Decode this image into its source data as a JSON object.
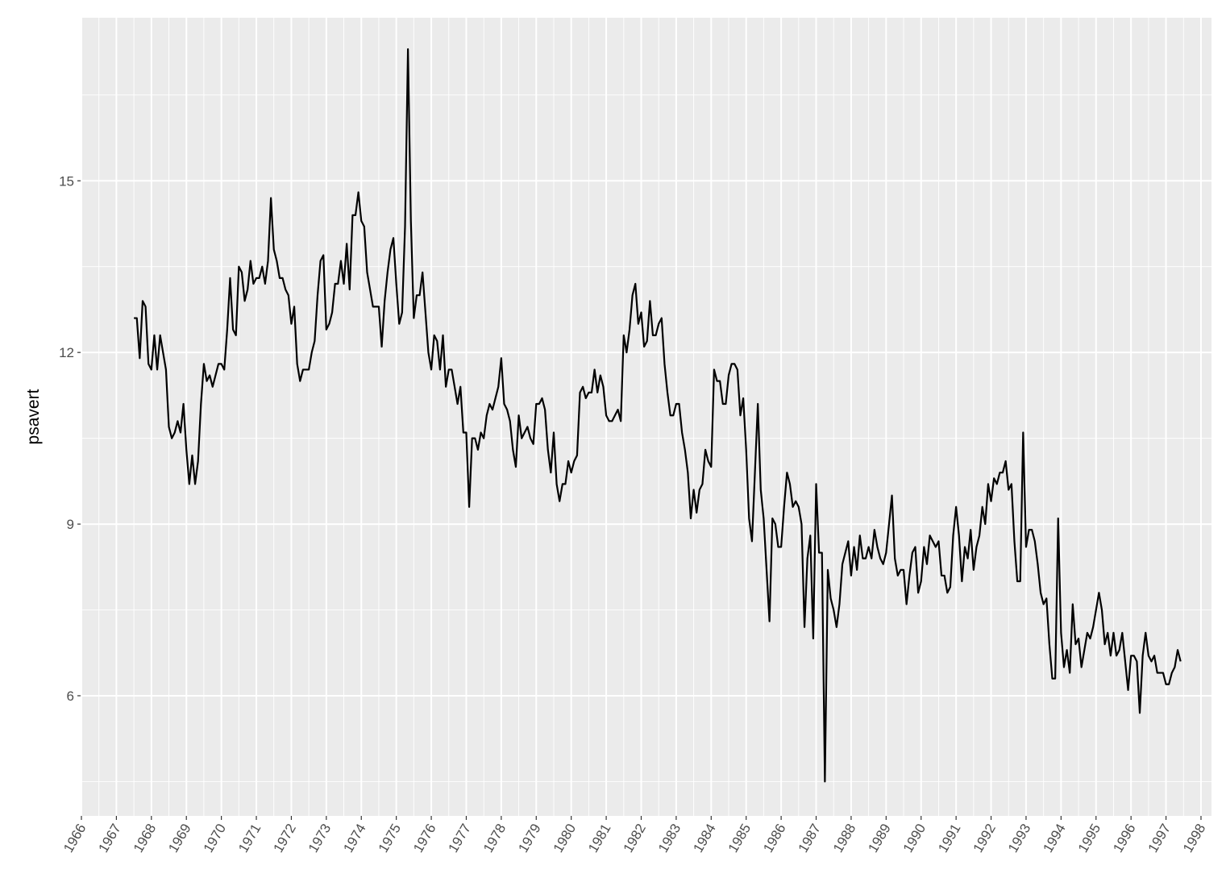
{
  "chart_data": {
    "type": "line",
    "y_label": "psavert",
    "x": [
      "1967-07",
      "1967-08",
      "1967-09",
      "1967-10",
      "1967-11",
      "1967-12",
      "1968-01",
      "1968-02",
      "1968-03",
      "1968-04",
      "1968-05",
      "1968-06",
      "1968-07",
      "1968-08",
      "1968-09",
      "1968-10",
      "1968-11",
      "1968-12",
      "1969-01",
      "1969-02",
      "1969-03",
      "1969-04",
      "1969-05",
      "1969-06",
      "1969-07",
      "1969-08",
      "1969-09",
      "1969-10",
      "1969-11",
      "1969-12",
      "1970-01",
      "1970-02",
      "1970-03",
      "1970-04",
      "1970-05",
      "1970-06",
      "1970-07",
      "1970-08",
      "1970-09",
      "1970-10",
      "1970-11",
      "1970-12",
      "1971-01",
      "1971-02",
      "1971-03",
      "1971-04",
      "1971-05",
      "1971-06",
      "1971-07",
      "1971-08",
      "1971-09",
      "1971-10",
      "1971-11",
      "1971-12",
      "1972-01",
      "1972-02",
      "1972-03",
      "1972-04",
      "1972-05",
      "1972-06",
      "1972-07",
      "1972-08",
      "1972-09",
      "1972-10",
      "1972-11",
      "1972-12",
      "1973-01",
      "1973-02",
      "1973-03",
      "1973-04",
      "1973-05",
      "1973-06",
      "1973-07",
      "1973-08",
      "1973-09",
      "1973-10",
      "1973-11",
      "1973-12",
      "1974-01",
      "1974-02",
      "1974-03",
      "1974-04",
      "1974-05",
      "1974-06",
      "1974-07",
      "1974-08",
      "1974-09",
      "1974-10",
      "1974-11",
      "1974-12",
      "1975-01",
      "1975-02",
      "1975-03",
      "1975-04",
      "1975-05",
      "1975-06",
      "1975-07",
      "1975-08",
      "1975-09",
      "1975-10",
      "1975-11",
      "1975-12",
      "1976-01",
      "1976-02",
      "1976-03",
      "1976-04",
      "1976-05",
      "1976-06",
      "1976-07",
      "1976-08",
      "1976-09",
      "1976-10",
      "1976-11",
      "1976-12",
      "1977-01",
      "1977-02",
      "1977-03",
      "1977-04",
      "1977-05",
      "1977-06",
      "1977-07",
      "1977-08",
      "1977-09",
      "1977-10",
      "1977-11",
      "1977-12",
      "1978-01",
      "1978-02",
      "1978-03",
      "1978-04",
      "1978-05",
      "1978-06",
      "1978-07",
      "1978-08",
      "1978-09",
      "1978-10",
      "1978-11",
      "1978-12",
      "1979-01",
      "1979-02",
      "1979-03",
      "1979-04",
      "1979-05",
      "1979-06",
      "1979-07",
      "1979-08",
      "1979-09",
      "1979-10",
      "1979-11",
      "1979-12",
      "1980-01",
      "1980-02",
      "1980-03",
      "1980-04",
      "1980-05",
      "1980-06",
      "1980-07",
      "1980-08",
      "1980-09",
      "1980-10",
      "1980-11",
      "1980-12",
      "1981-01",
      "1981-02",
      "1981-03",
      "1981-04",
      "1981-05",
      "1981-06",
      "1981-07",
      "1981-08",
      "1981-09",
      "1981-10",
      "1981-11",
      "1981-12",
      "1982-01",
      "1982-02",
      "1982-03",
      "1982-04",
      "1982-05",
      "1982-06",
      "1982-07",
      "1982-08",
      "1982-09",
      "1982-10",
      "1982-11",
      "1982-12",
      "1983-01",
      "1983-02",
      "1983-03",
      "1983-04",
      "1983-05",
      "1983-06",
      "1983-07",
      "1983-08",
      "1983-09",
      "1983-10",
      "1983-11",
      "1983-12",
      "1984-01",
      "1984-02",
      "1984-03",
      "1984-04",
      "1984-05",
      "1984-06",
      "1984-07",
      "1984-08",
      "1984-09",
      "1984-10",
      "1984-11",
      "1984-12",
      "1985-01",
      "1985-02",
      "1985-03",
      "1985-04",
      "1985-05",
      "1985-06",
      "1985-07",
      "1985-08",
      "1985-09",
      "1985-10",
      "1985-11",
      "1985-12",
      "1986-01",
      "1986-02",
      "1986-03",
      "1986-04",
      "1986-05",
      "1986-06",
      "1986-07",
      "1986-08",
      "1986-09",
      "1986-10",
      "1986-11",
      "1986-12",
      "1987-01",
      "1987-02",
      "1987-03",
      "1987-04",
      "1987-05",
      "1987-06",
      "1987-07",
      "1987-08",
      "1987-09",
      "1987-10",
      "1987-11",
      "1987-12",
      "1988-01",
      "1988-02",
      "1988-03",
      "1988-04",
      "1988-05",
      "1988-06",
      "1988-07",
      "1988-08",
      "1988-09",
      "1988-10",
      "1988-11",
      "1988-12",
      "1989-01",
      "1989-02",
      "1989-03",
      "1989-04",
      "1989-05",
      "1989-06",
      "1989-07",
      "1989-08",
      "1989-09",
      "1989-10",
      "1989-11",
      "1989-12",
      "1990-01",
      "1990-02",
      "1990-03",
      "1990-04",
      "1990-05",
      "1990-06",
      "1990-07",
      "1990-08",
      "1990-09",
      "1990-10",
      "1990-11",
      "1990-12",
      "1991-01",
      "1991-02",
      "1991-03",
      "1991-04",
      "1991-05",
      "1991-06",
      "1991-07",
      "1991-08",
      "1991-09",
      "1991-10",
      "1991-11",
      "1991-12",
      "1992-01",
      "1992-02",
      "1992-03",
      "1992-04",
      "1992-05",
      "1992-06",
      "1992-07",
      "1992-08",
      "1992-09",
      "1992-10",
      "1992-11",
      "1992-12",
      "1993-01",
      "1993-02",
      "1993-03",
      "1993-04",
      "1993-05",
      "1993-06",
      "1993-07",
      "1993-08",
      "1993-09",
      "1993-10",
      "1993-11",
      "1993-12",
      "1994-01",
      "1994-02",
      "1994-03",
      "1994-04",
      "1994-05",
      "1994-06",
      "1994-07",
      "1994-08",
      "1994-09",
      "1994-10",
      "1994-11",
      "1994-12",
      "1995-01",
      "1995-02",
      "1995-03",
      "1995-04",
      "1995-05",
      "1995-06",
      "1995-07",
      "1995-08",
      "1995-09",
      "1995-10",
      "1995-11",
      "1995-12",
      "1996-01",
      "1996-02",
      "1996-03",
      "1996-04",
      "1996-05",
      "1996-06",
      "1996-07",
      "1996-08",
      "1996-09",
      "1996-10",
      "1996-11",
      "1996-12",
      "1997-01",
      "1997-02",
      "1997-03",
      "1997-04",
      "1997-05",
      "1997-06"
    ],
    "series": [
      {
        "name": "psavert",
        "color": "#000000",
        "values": [
          12.6,
          12.6,
          11.9,
          12.9,
          12.8,
          11.8,
          11.7,
          12.3,
          11.7,
          12.3,
          12.0,
          11.7,
          10.7,
          10.5,
          10.6,
          10.8,
          10.6,
          11.1,
          10.3,
          9.7,
          10.2,
          9.7,
          10.1,
          11.1,
          11.8,
          11.5,
          11.6,
          11.4,
          11.6,
          11.8,
          11.8,
          11.7,
          12.4,
          13.3,
          12.4,
          12.3,
          13.5,
          13.4,
          12.9,
          13.1,
          13.6,
          13.2,
          13.3,
          13.3,
          13.5,
          13.2,
          13.6,
          14.7,
          13.8,
          13.6,
          13.3,
          13.3,
          13.1,
          13.0,
          12.5,
          12.8,
          11.8,
          11.5,
          11.7,
          11.7,
          11.7,
          12.0,
          12.2,
          13.0,
          13.6,
          13.7,
          12.4,
          12.5,
          12.7,
          13.2,
          13.2,
          13.6,
          13.2,
          13.9,
          13.1,
          14.4,
          14.4,
          14.8,
          14.3,
          14.2,
          13.4,
          13.1,
          12.8,
          12.8,
          12.8,
          12.1,
          12.9,
          13.4,
          13.8,
          14.0,
          13.2,
          12.5,
          12.7,
          14.2,
          17.3,
          14.3,
          12.6,
          13.0,
          13.0,
          13.4,
          12.7,
          12.0,
          11.7,
          12.3,
          12.2,
          11.7,
          12.3,
          11.4,
          11.7,
          11.7,
          11.4,
          11.1,
          11.4,
          10.6,
          10.6,
          9.3,
          10.5,
          10.5,
          10.3,
          10.6,
          10.5,
          10.9,
          11.1,
          11.0,
          11.2,
          11.4,
          11.9,
          11.1,
          11.0,
          10.8,
          10.3,
          10.0,
          10.9,
          10.5,
          10.6,
          10.7,
          10.5,
          10.4,
          11.1,
          11.1,
          11.2,
          11.0,
          10.3,
          9.9,
          10.6,
          9.7,
          9.4,
          9.7,
          9.7,
          10.1,
          9.9,
          10.1,
          10.2,
          11.3,
          11.4,
          11.2,
          11.3,
          11.3,
          11.7,
          11.3,
          11.6,
          11.4,
          10.9,
          10.8,
          10.8,
          10.9,
          11.0,
          10.8,
          12.3,
          12.0,
          12.4,
          13.0,
          13.2,
          12.5,
          12.7,
          12.1,
          12.2,
          12.9,
          12.3,
          12.3,
          12.5,
          12.6,
          11.8,
          11.3,
          10.9,
          10.9,
          11.1,
          11.1,
          10.6,
          10.3,
          9.9,
          9.1,
          9.6,
          9.2,
          9.6,
          9.7,
          10.3,
          10.1,
          10.0,
          11.7,
          11.5,
          11.5,
          11.1,
          11.1,
          11.6,
          11.8,
          11.8,
          11.7,
          10.9,
          11.2,
          10.3,
          9.1,
          8.7,
          9.9,
          11.1,
          9.6,
          9.1,
          8.2,
          7.3,
          9.1,
          9.0,
          8.6,
          8.6,
          9.3,
          9.9,
          9.7,
          9.3,
          9.4,
          9.3,
          9.0,
          7.2,
          8.4,
          8.8,
          7.0,
          9.7,
          8.5,
          8.5,
          4.5,
          8.2,
          7.7,
          7.5,
          7.2,
          7.6,
          8.3,
          8.5,
          8.7,
          8.1,
          8.6,
          8.2,
          8.8,
          8.4,
          8.4,
          8.6,
          8.4,
          8.9,
          8.6,
          8.4,
          8.3,
          8.5,
          9.0,
          9.5,
          8.4,
          8.1,
          8.2,
          8.2,
          7.6,
          8.1,
          8.5,
          8.6,
          7.8,
          8.0,
          8.6,
          8.3,
          8.8,
          8.7,
          8.6,
          8.7,
          8.1,
          8.1,
          7.8,
          7.9,
          8.8,
          9.3,
          8.8,
          8.0,
          8.6,
          8.4,
          8.9,
          8.2,
          8.6,
          8.8,
          9.3,
          9.0,
          9.7,
          9.4,
          9.8,
          9.7,
          9.9,
          9.9,
          10.1,
          9.6,
          9.7,
          8.7,
          8.0,
          8.0,
          10.6,
          8.6,
          8.9,
          8.9,
          8.7,
          8.3,
          7.8,
          7.6,
          7.7,
          6.9,
          6.3,
          6.3,
          9.1,
          7.1,
          6.5,
          6.8,
          6.4,
          7.6,
          6.9,
          7.0,
          6.5,
          6.8,
          7.1,
          7.0,
          7.2,
          7.5,
          7.8,
          7.5,
          6.9,
          7.1,
          6.7,
          7.1,
          6.7,
          6.8,
          7.1,
          6.6,
          6.1,
          6.7,
          6.7,
          6.6,
          5.7,
          6.7,
          7.1,
          6.7,
          6.6,
          6.7,
          6.4,
          6.4,
          6.4,
          6.2,
          6.2,
          6.4,
          6.5,
          6.8,
          6.6
        ]
      }
    ],
    "xlim": [
      1966,
      1998.3
    ],
    "xticks": [
      1966,
      1967,
      1968,
      1969,
      1970,
      1971,
      1972,
      1973,
      1974,
      1975,
      1976,
      1977,
      1978,
      1979,
      1980,
      1981,
      1982,
      1983,
      1984,
      1985,
      1986,
      1987,
      1988,
      1989,
      1990,
      1991,
      1992,
      1993,
      1994,
      1995,
      1996,
      1997,
      1998
    ],
    "ylim": [
      3.9,
      17.85
    ],
    "yticks": [
      6,
      9,
      12,
      15
    ],
    "grid": true,
    "background": "#ebebeb"
  }
}
